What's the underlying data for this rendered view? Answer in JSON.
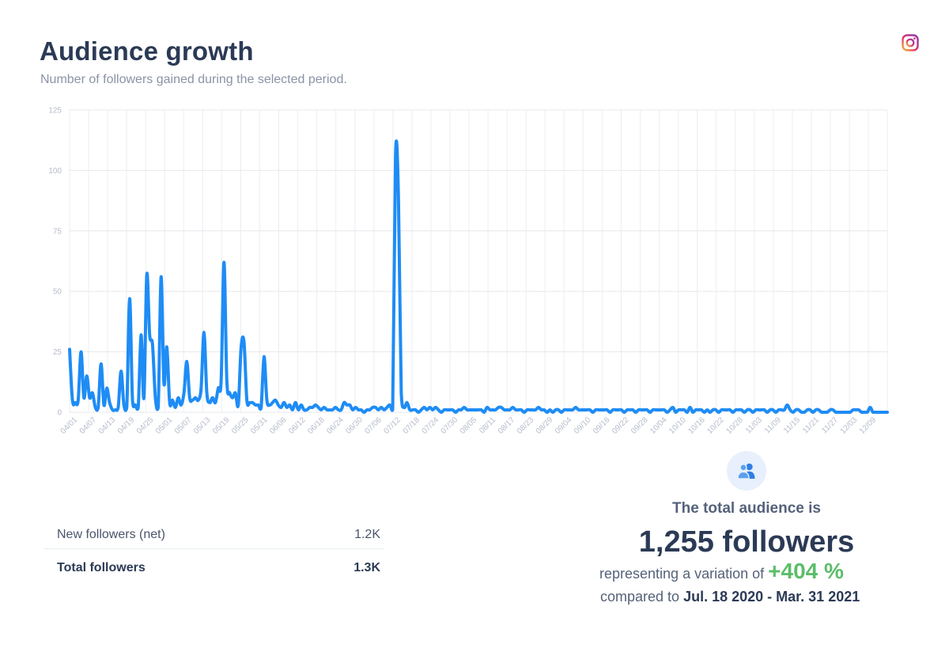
{
  "header": {
    "title": "Audience growth",
    "subtitle": "Number of followers gained during the selected period.",
    "platform_icon": "instagram-icon"
  },
  "chart_data": {
    "type": "line",
    "title": "",
    "xlabel": "",
    "ylabel": "",
    "ylim": [
      0,
      125
    ],
    "yticks": [
      0,
      25,
      50,
      75,
      100,
      125
    ],
    "grid": true,
    "line_color": "#1e8cf5",
    "x_labels": [
      "04/01",
      "04/07",
      "04/13",
      "04/19",
      "04/25",
      "05/01",
      "05/07",
      "05/13",
      "05/19",
      "05/25",
      "05/31",
      "06/06",
      "06/12",
      "06/18",
      "06/24",
      "06/30",
      "07/06",
      "07/12",
      "07/18",
      "07/24",
      "07/30",
      "08/05",
      "08/11",
      "08/17",
      "08/23",
      "08/29",
      "09/04",
      "09/10",
      "09/16",
      "09/22",
      "09/28",
      "10/04",
      "10/10",
      "10/16",
      "10/22",
      "10/28",
      "11/03",
      "11/09",
      "11/15",
      "11/21",
      "11/27",
      "12/03",
      "12/09"
    ],
    "series": [
      {
        "values": [
          26,
          5,
          4,
          5,
          25,
          6,
          15,
          6,
          8,
          2,
          2,
          20,
          3,
          10,
          4,
          1,
          1,
          2,
          17,
          3,
          2,
          47,
          5,
          3,
          2,
          32,
          6,
          57,
          32,
          28,
          6,
          2,
          56,
          12,
          27,
          4,
          5,
          2,
          6,
          3,
          8,
          21,
          6,
          5,
          6,
          5,
          10,
          33,
          8,
          4,
          6,
          4,
          10,
          13,
          62,
          13,
          8,
          6,
          8,
          3,
          27,
          29,
          5,
          4,
          4,
          3,
          3,
          2,
          23,
          5,
          3,
          4,
          5,
          3,
          2,
          4,
          2,
          3,
          1,
          4,
          1,
          3,
          1,
          1,
          2,
          2,
          3,
          2,
          1,
          2,
          1,
          1,
          1,
          2,
          1,
          1,
          4,
          3,
          3,
          1,
          2,
          1,
          1,
          0,
          1,
          1,
          2,
          2,
          1,
          2,
          1,
          2,
          3,
          1,
          106,
          90,
          8,
          2,
          4,
          1,
          1,
          1,
          0,
          1,
          2,
          1,
          2,
          1,
          2,
          1,
          0,
          1,
          1,
          1,
          1,
          0,
          1,
          1,
          2,
          1,
          1,
          1,
          1,
          1,
          1,
          0,
          2,
          1,
          1,
          1,
          2,
          2,
          1,
          1,
          1,
          2,
          1,
          1,
          1,
          0,
          1,
          1,
          1,
          1,
          2,
          1,
          1,
          0,
          1,
          0,
          1,
          1,
          0,
          1,
          1,
          1,
          1,
          2,
          1,
          1,
          1,
          1,
          1,
          0,
          1,
          1,
          1,
          1,
          1,
          0,
          1,
          1,
          1,
          1,
          0,
          1,
          1,
          1,
          0,
          1,
          1,
          1,
          1,
          0,
          1,
          1,
          1,
          1,
          1,
          0,
          1,
          2,
          0,
          1,
          1,
          1,
          0,
          2,
          0,
          1,
          1,
          1,
          0,
          1,
          0,
          1,
          1,
          0,
          1,
          1,
          1,
          1,
          0,
          1,
          1,
          1,
          0,
          1,
          1,
          0,
          1,
          1,
          1,
          1,
          0,
          1,
          1,
          0,
          1,
          1,
          1,
          3,
          1,
          0,
          1,
          1,
          0,
          0,
          1,
          1,
          0,
          1,
          1,
          0,
          0,
          0,
          1,
          1,
          0,
          0,
          0,
          0,
          0,
          0,
          1,
          1,
          1,
          0,
          0,
          0,
          2,
          0,
          0,
          0,
          0,
          0,
          0
        ]
      }
    ]
  },
  "stats": {
    "rows": [
      {
        "label": "New followers (net)",
        "value": "1.2K"
      },
      {
        "label": "Total followers",
        "value": "1.3K"
      }
    ]
  },
  "summary": {
    "icon": "users-icon",
    "label": "The total audience is",
    "value": "1,255 followers",
    "variation_prefix": "representing a variation of",
    "variation_pct": "+404 %",
    "compared_prefix": "compared to",
    "compared_range": "Jul. 18 2020 - Mar. 31 2021"
  },
  "colors": {
    "line": "#1e8cf5",
    "positive": "#5cbd6a",
    "title": "#2b3a55"
  }
}
